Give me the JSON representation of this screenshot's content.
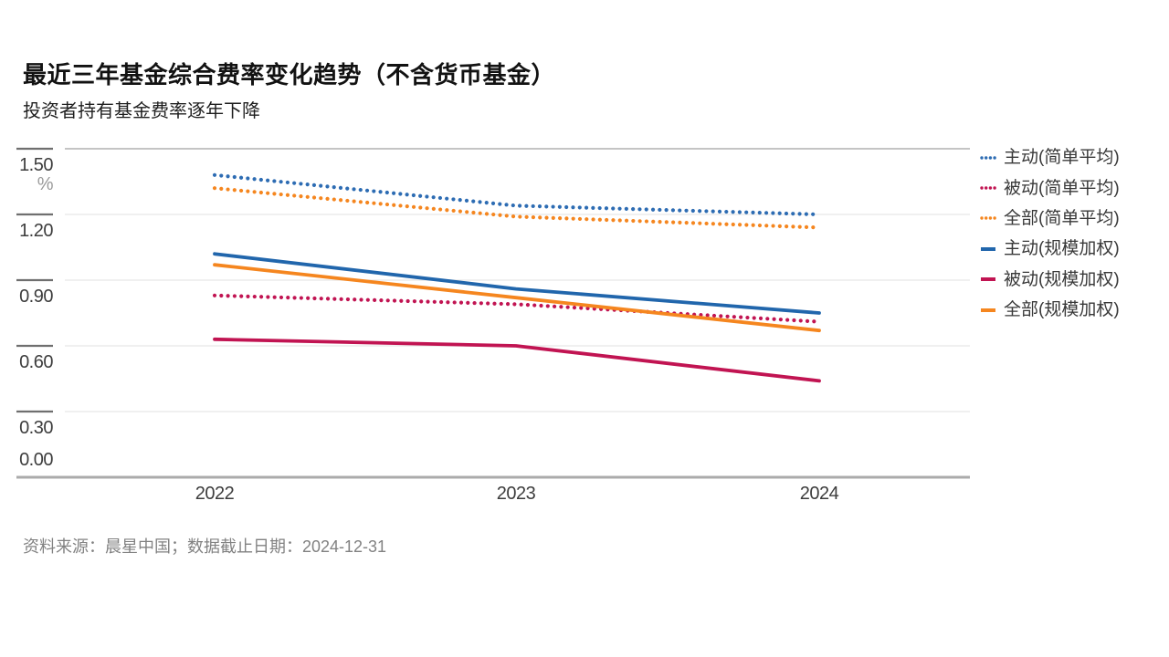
{
  "header": {
    "title": "最近三年基金综合费率变化趋势（不含货币基金）",
    "subtitle": "投资者持有基金费率逐年下降"
  },
  "footer": {
    "source_note": "资料来源：晨星中国；数据截止日期：2024-12-31"
  },
  "chart_data": {
    "type": "line",
    "title": "最近三年基金综合费率变化趋势（不含货币基金）",
    "subtitle": "投资者持有基金费率逐年下降",
    "categories": [
      "2022",
      "2023",
      "2024"
    ],
    "unit": "%",
    "ylim": [
      0,
      1.5
    ],
    "yticks": [
      "1.50",
      "1.20",
      "0.90",
      "0.60",
      "0.30",
      "0.00"
    ],
    "grid": true,
    "legend_position": "right",
    "series": [
      {
        "id": "active-simple",
        "name": "主动(简单平均)",
        "style": "dotted",
        "color": "#2d6cb3",
        "values": [
          1.38,
          1.24,
          1.2
        ]
      },
      {
        "id": "passive-simple",
        "name": "被动(简单平均)",
        "style": "dotted",
        "color": "#c11452",
        "values": [
          0.83,
          0.79,
          0.71
        ]
      },
      {
        "id": "all-simple",
        "name": "全部(简单平均)",
        "style": "dotted",
        "color": "#f5861f",
        "values": [
          1.32,
          1.19,
          1.14
        ]
      },
      {
        "id": "active-weighted",
        "name": "主动(规模加权)",
        "style": "solid",
        "color": "#2166ac",
        "values": [
          1.02,
          0.86,
          0.75
        ]
      },
      {
        "id": "passive-weighted",
        "name": "被动(规模加权)",
        "style": "solid",
        "color": "#c11452",
        "values": [
          0.63,
          0.6,
          0.44
        ]
      },
      {
        "id": "all-weighted",
        "name": "全部(规模加权)",
        "style": "solid",
        "color": "#f5861f",
        "values": [
          0.97,
          0.82,
          0.67
        ]
      }
    ],
    "source": "资料来源：晨星中国；数据截止日期：2024-12-31"
  }
}
